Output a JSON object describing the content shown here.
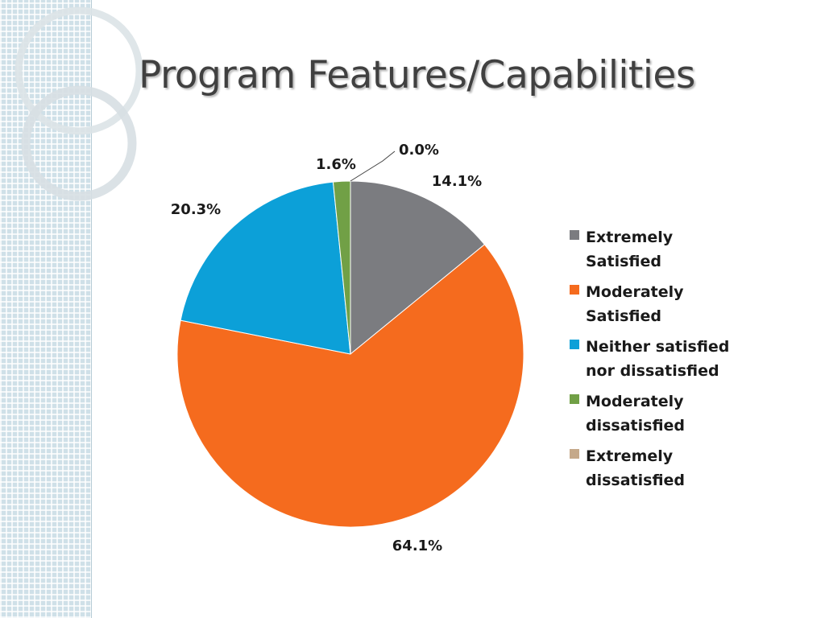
{
  "slide": {
    "title": "Program Features/Capabilities"
  },
  "theme": {
    "strip_color": "#cfe0e8",
    "ring_color": "#d9e2e6",
    "title_color": "#404040"
  },
  "chart_data": {
    "type": "pie",
    "title": "",
    "legend_position": "right",
    "categories": [
      "Extremely Satisfied",
      "Moderately Satisfied",
      "Neither satisfied nor dissatisfied",
      "Moderately dissatisfied",
      "Extremely dissatisfied"
    ],
    "values": [
      14.1,
      64.1,
      20.3,
      1.6,
      0.0
    ],
    "data_labels": [
      "14.1%",
      "64.1%",
      "20.3%",
      "1.6%",
      "0.0%"
    ],
    "colors": [
      "#7b7c80",
      "#f56b1e",
      "#0ca0d8",
      "#71a046",
      "#c5a98a"
    ],
    "start_angle_deg": 0,
    "direction": "clockwise"
  }
}
